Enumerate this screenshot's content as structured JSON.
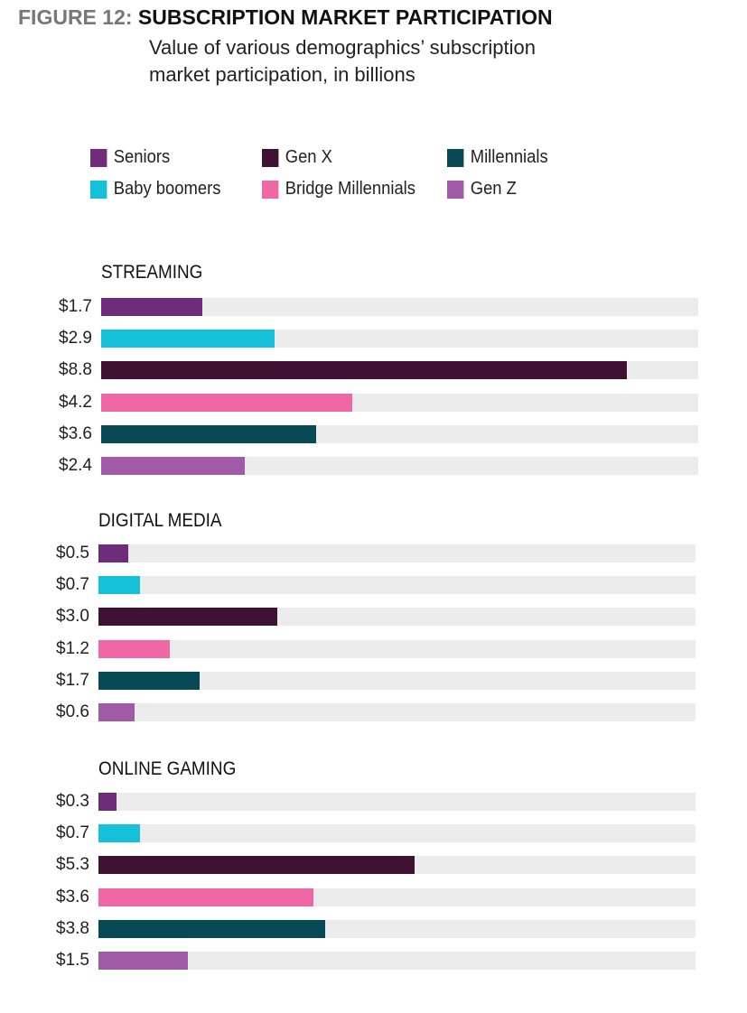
{
  "header": {
    "figure_label": "FIGURE 12:",
    "title": "SUBSCRIPTION MARKET PARTICIPATION",
    "subtitle_line1": "Value of various demographics’ subscription",
    "subtitle_line2": "market participation, in billions"
  },
  "colors": {
    "Seniors": "#6f2c7a",
    "Baby boomers": "#15c0d9",
    "Gen X": "#3f1133",
    "Bridge Millennials": "#ef67a5",
    "Millennials": "#074a55",
    "Gen Z": "#a05aa6",
    "track": "#ececec"
  },
  "chart_data": {
    "type": "bar",
    "orientation": "horizontal",
    "title": "SUBSCRIPTION MARKET PARTICIPATION",
    "subtitle": "Value of various demographics’ subscription market participation, in billions",
    "unit": "$ billions",
    "xlim": [
      0,
      10
    ],
    "grid": false,
    "legend": {
      "placement": "top",
      "entries": [
        "Seniors",
        "Gen X",
        "Millennials",
        "Baby boomers",
        "Bridge Millennials",
        "Gen Z"
      ]
    },
    "categories": [
      "Seniors",
      "Baby boomers",
      "Gen X",
      "Bridge Millennials",
      "Millennials",
      "Gen Z"
    ],
    "panels": [
      {
        "title": "STREAMING",
        "values": [
          1.7,
          2.9,
          8.8,
          4.2,
          3.6,
          2.4
        ],
        "labels": [
          "$1.7",
          "$2.9",
          "$8.8",
          "$4.2",
          "$3.6",
          "$2.4"
        ]
      },
      {
        "title": "DIGITAL MEDIA",
        "values": [
          0.5,
          0.7,
          3.0,
          1.2,
          1.7,
          0.6
        ],
        "labels": [
          "$0.5",
          "$0.7",
          "$3.0",
          "$1.2",
          "$1.7",
          "$0.6"
        ]
      },
      {
        "title": "ONLINE GAMING",
        "values": [
          0.3,
          0.7,
          5.3,
          3.6,
          3.8,
          1.5
        ],
        "labels": [
          "$0.3",
          "$0.7",
          "$5.3",
          "$3.6",
          "$3.8",
          "$1.5"
        ]
      }
    ]
  }
}
